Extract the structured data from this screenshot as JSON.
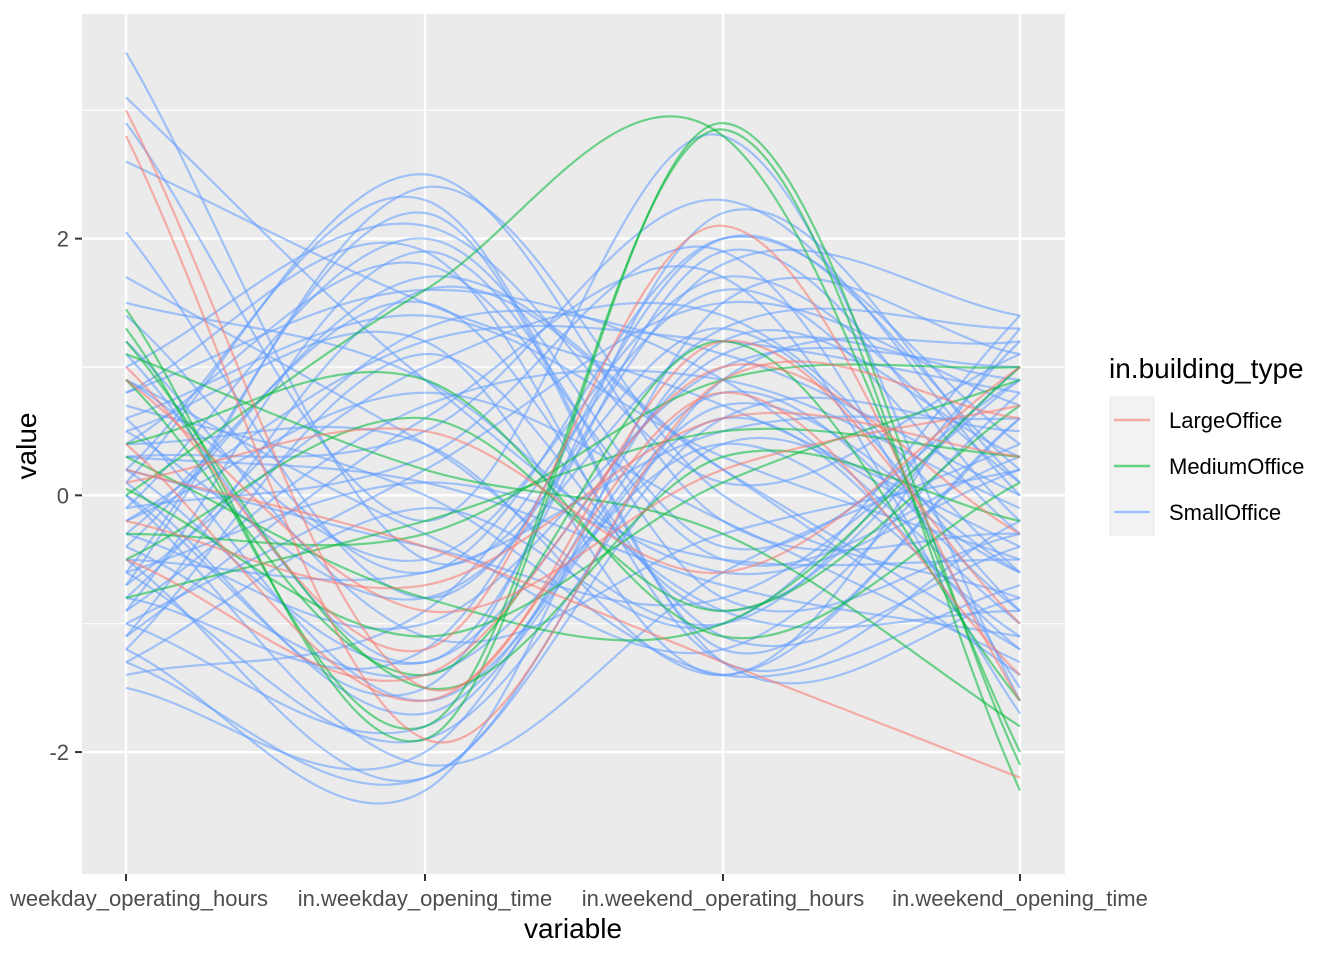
{
  "chart_data": {
    "type": "line",
    "subtype": "parallel-coordinates (smoothed curves)",
    "title": "",
    "xlabel": "variable",
    "ylabel": "value",
    "categories": [
      "in.weekday_operating_hours",
      "in.weekday_opening_time",
      "in.weekend_operating_hours",
      "in.weekend_opening_time"
    ],
    "x_tick_labels_shown": [
      "weekday_operating_hours",
      "in.weekday_opening_time",
      "in.weekend_operating_hours",
      "in.weekend_opening_time"
    ],
    "y_ticks": [
      -2,
      0,
      2
    ],
    "ylim": [
      -2.95,
      3.75
    ],
    "grid": true,
    "legend": {
      "title": "in.building_type",
      "placement": "right",
      "entries": [
        "LargeOffice",
        "MediumOffice",
        "SmallOffice"
      ]
    },
    "colors": {
      "LargeOffice": "#F8766D",
      "MediumOffice": "#00BA38",
      "SmallOffice": "#619CFF",
      "panel_bg": "#EBEBEB",
      "grid": "#FFFFFF"
    },
    "series": [
      {
        "name": "LargeOffice",
        "lines": [
          [
            3.0,
            -1.5,
            1.2,
            -1.0
          ],
          [
            2.8,
            -1.9,
            0.9,
            0.6
          ],
          [
            1.0,
            -1.2,
            2.1,
            -1.6
          ],
          [
            0.2,
            -0.4,
            -1.3,
            -2.2
          ],
          [
            0.9,
            -0.9,
            0.2,
            0.7
          ],
          [
            -0.5,
            -1.4,
            1.0,
            -0.3
          ],
          [
            0.1,
            0.5,
            -0.6,
            1.0
          ],
          [
            -0.2,
            -0.7,
            0.6,
            0.3
          ],
          [
            0.4,
            -1.6,
            0.8,
            -1.4
          ]
        ]
      },
      {
        "name": "MediumOffice",
        "lines": [
          [
            1.45,
            -1.9,
            2.9,
            -2.1
          ],
          [
            1.3,
            -1.8,
            2.85,
            -2.3
          ],
          [
            0.0,
            1.6,
            2.8,
            -2.0
          ],
          [
            0.9,
            -1.4,
            1.2,
            -1.6
          ],
          [
            -0.3,
            -0.3,
            0.9,
            1.0
          ],
          [
            0.3,
            -0.8,
            -1.0,
            1.0
          ],
          [
            1.1,
            0.2,
            -0.3,
            -1.8
          ],
          [
            -0.8,
            -0.2,
            0.5,
            0.3
          ],
          [
            0.05,
            -1.1,
            0.1,
            0.9
          ],
          [
            -0.5,
            0.6,
            -0.9,
            0.7
          ],
          [
            1.2,
            -1.5,
            0.3,
            -0.2
          ],
          [
            0.4,
            0.9,
            -1.1,
            0.1
          ]
        ]
      },
      {
        "name": "SmallOffice",
        "lines": [
          [
            3.45,
            -0.5,
            1.3,
            -0.9
          ],
          [
            3.1,
            0.9,
            -0.6,
            0.2
          ],
          [
            2.9,
            -0.2,
            2.8,
            -1.6
          ],
          [
            2.6,
            1.5,
            0.7,
            -0.4
          ],
          [
            2.05,
            -0.8,
            1.8,
            1.4
          ],
          [
            -1.5,
            -2.0,
            1.2,
            0.3
          ],
          [
            -1.3,
            -2.2,
            0.4,
            -0.6
          ],
          [
            -1.2,
            -2.3,
            1.5,
            1.1
          ],
          [
            -1.0,
            -1.8,
            0.6,
            -1.2
          ],
          [
            -0.9,
            1.9,
            -0.8,
            -0.3
          ],
          [
            -0.6,
            2.2,
            -1.2,
            0.6
          ],
          [
            -0.4,
            1.7,
            0.2,
            -1.4
          ],
          [
            -0.1,
            2.0,
            -0.4,
            0.9
          ],
          [
            0.2,
            2.3,
            -1.3,
            -0.8
          ],
          [
            0.5,
            1.2,
            -1.4,
            1.3
          ],
          [
            0.8,
            1.6,
            0.9,
            -1.0
          ],
          [
            1.1,
            -1.3,
            1.9,
            -0.2
          ],
          [
            1.4,
            -0.6,
            2.0,
            0.4
          ],
          [
            1.7,
            0.4,
            -1.0,
            1.2
          ],
          [
            -1.1,
            0.6,
            1.7,
            -1.7
          ],
          [
            -0.7,
            1.0,
            1.4,
            -0.6
          ],
          [
            -0.3,
            -1.0,
            1.0,
            1.0
          ],
          [
            0.0,
            -1.5,
            2.2,
            0.1
          ],
          [
            0.3,
            0.1,
            -0.7,
            -1.1
          ],
          [
            0.6,
            1.4,
            0.3,
            -0.5
          ],
          [
            0.9,
            -0.3,
            -1.2,
            0.8
          ],
          [
            -0.2,
            0.8,
            -0.2,
            -1.3
          ],
          [
            -0.5,
            -0.6,
            0.5,
            0.6
          ],
          [
            -0.8,
            1.3,
            1.1,
            0.0
          ],
          [
            0.1,
            -1.7,
            0.8,
            -0.9
          ],
          [
            0.4,
            1.8,
            -0.5,
            0.3
          ],
          [
            -1.2,
            1.1,
            -0.9,
            1.0
          ],
          [
            -1.4,
            -0.9,
            1.6,
            -0.3
          ],
          [
            0.7,
            0.0,
            -1.4,
            -0.7
          ],
          [
            1.0,
            2.1,
            0.1,
            1.1
          ],
          [
            -0.6,
            -1.9,
            0.6,
            0.5
          ],
          [
            -0.1,
            0.3,
            1.9,
            -1.5
          ],
          [
            0.2,
            -0.4,
            -0.8,
            0.9
          ],
          [
            -0.9,
            0.7,
            0.9,
            -0.1
          ],
          [
            1.2,
            -1.1,
            -0.3,
            0.2
          ],
          [
            -0.3,
            1.5,
            -1.1,
            -0.4
          ],
          [
            0.5,
            -0.8,
            1.3,
            1.3
          ],
          [
            -0.7,
            2.4,
            0.0,
            -0.8
          ],
          [
            0.0,
            -2.1,
            -0.6,
            0.4
          ],
          [
            -1.0,
            0.2,
            1.5,
            0.7
          ],
          [
            0.8,
            1.9,
            -1.3,
            -0.2
          ],
          [
            -0.4,
            -1.4,
            0.4,
            -1.1
          ],
          [
            0.3,
            0.5,
            2.3,
            0.0
          ],
          [
            -1.3,
            -0.1,
            -1.0,
            1.4
          ],
          [
            0.6,
            -1.6,
            0.7,
            -0.6
          ],
          [
            -0.2,
            1.2,
            1.2,
            0.8
          ],
          [
            1.5,
            0.9,
            -0.9,
            -0.9
          ],
          [
            -0.8,
            -1.2,
            2.0,
            0.2
          ],
          [
            0.1,
            2.5,
            -0.2,
            -0.3
          ],
          [
            -0.5,
            -2.2,
            0.9,
            1.2
          ],
          [
            0.4,
            0.4,
            -1.4,
            0.6
          ],
          [
            -1.1,
            1.6,
            0.2,
            -1.2
          ],
          [
            0.9,
            -0.5,
            1.7,
            0.1
          ],
          [
            -0.6,
            0.1,
            -0.5,
            -0.5
          ],
          [
            0.2,
            -1.3,
            1.1,
            0.9
          ]
        ]
      }
    ]
  }
}
